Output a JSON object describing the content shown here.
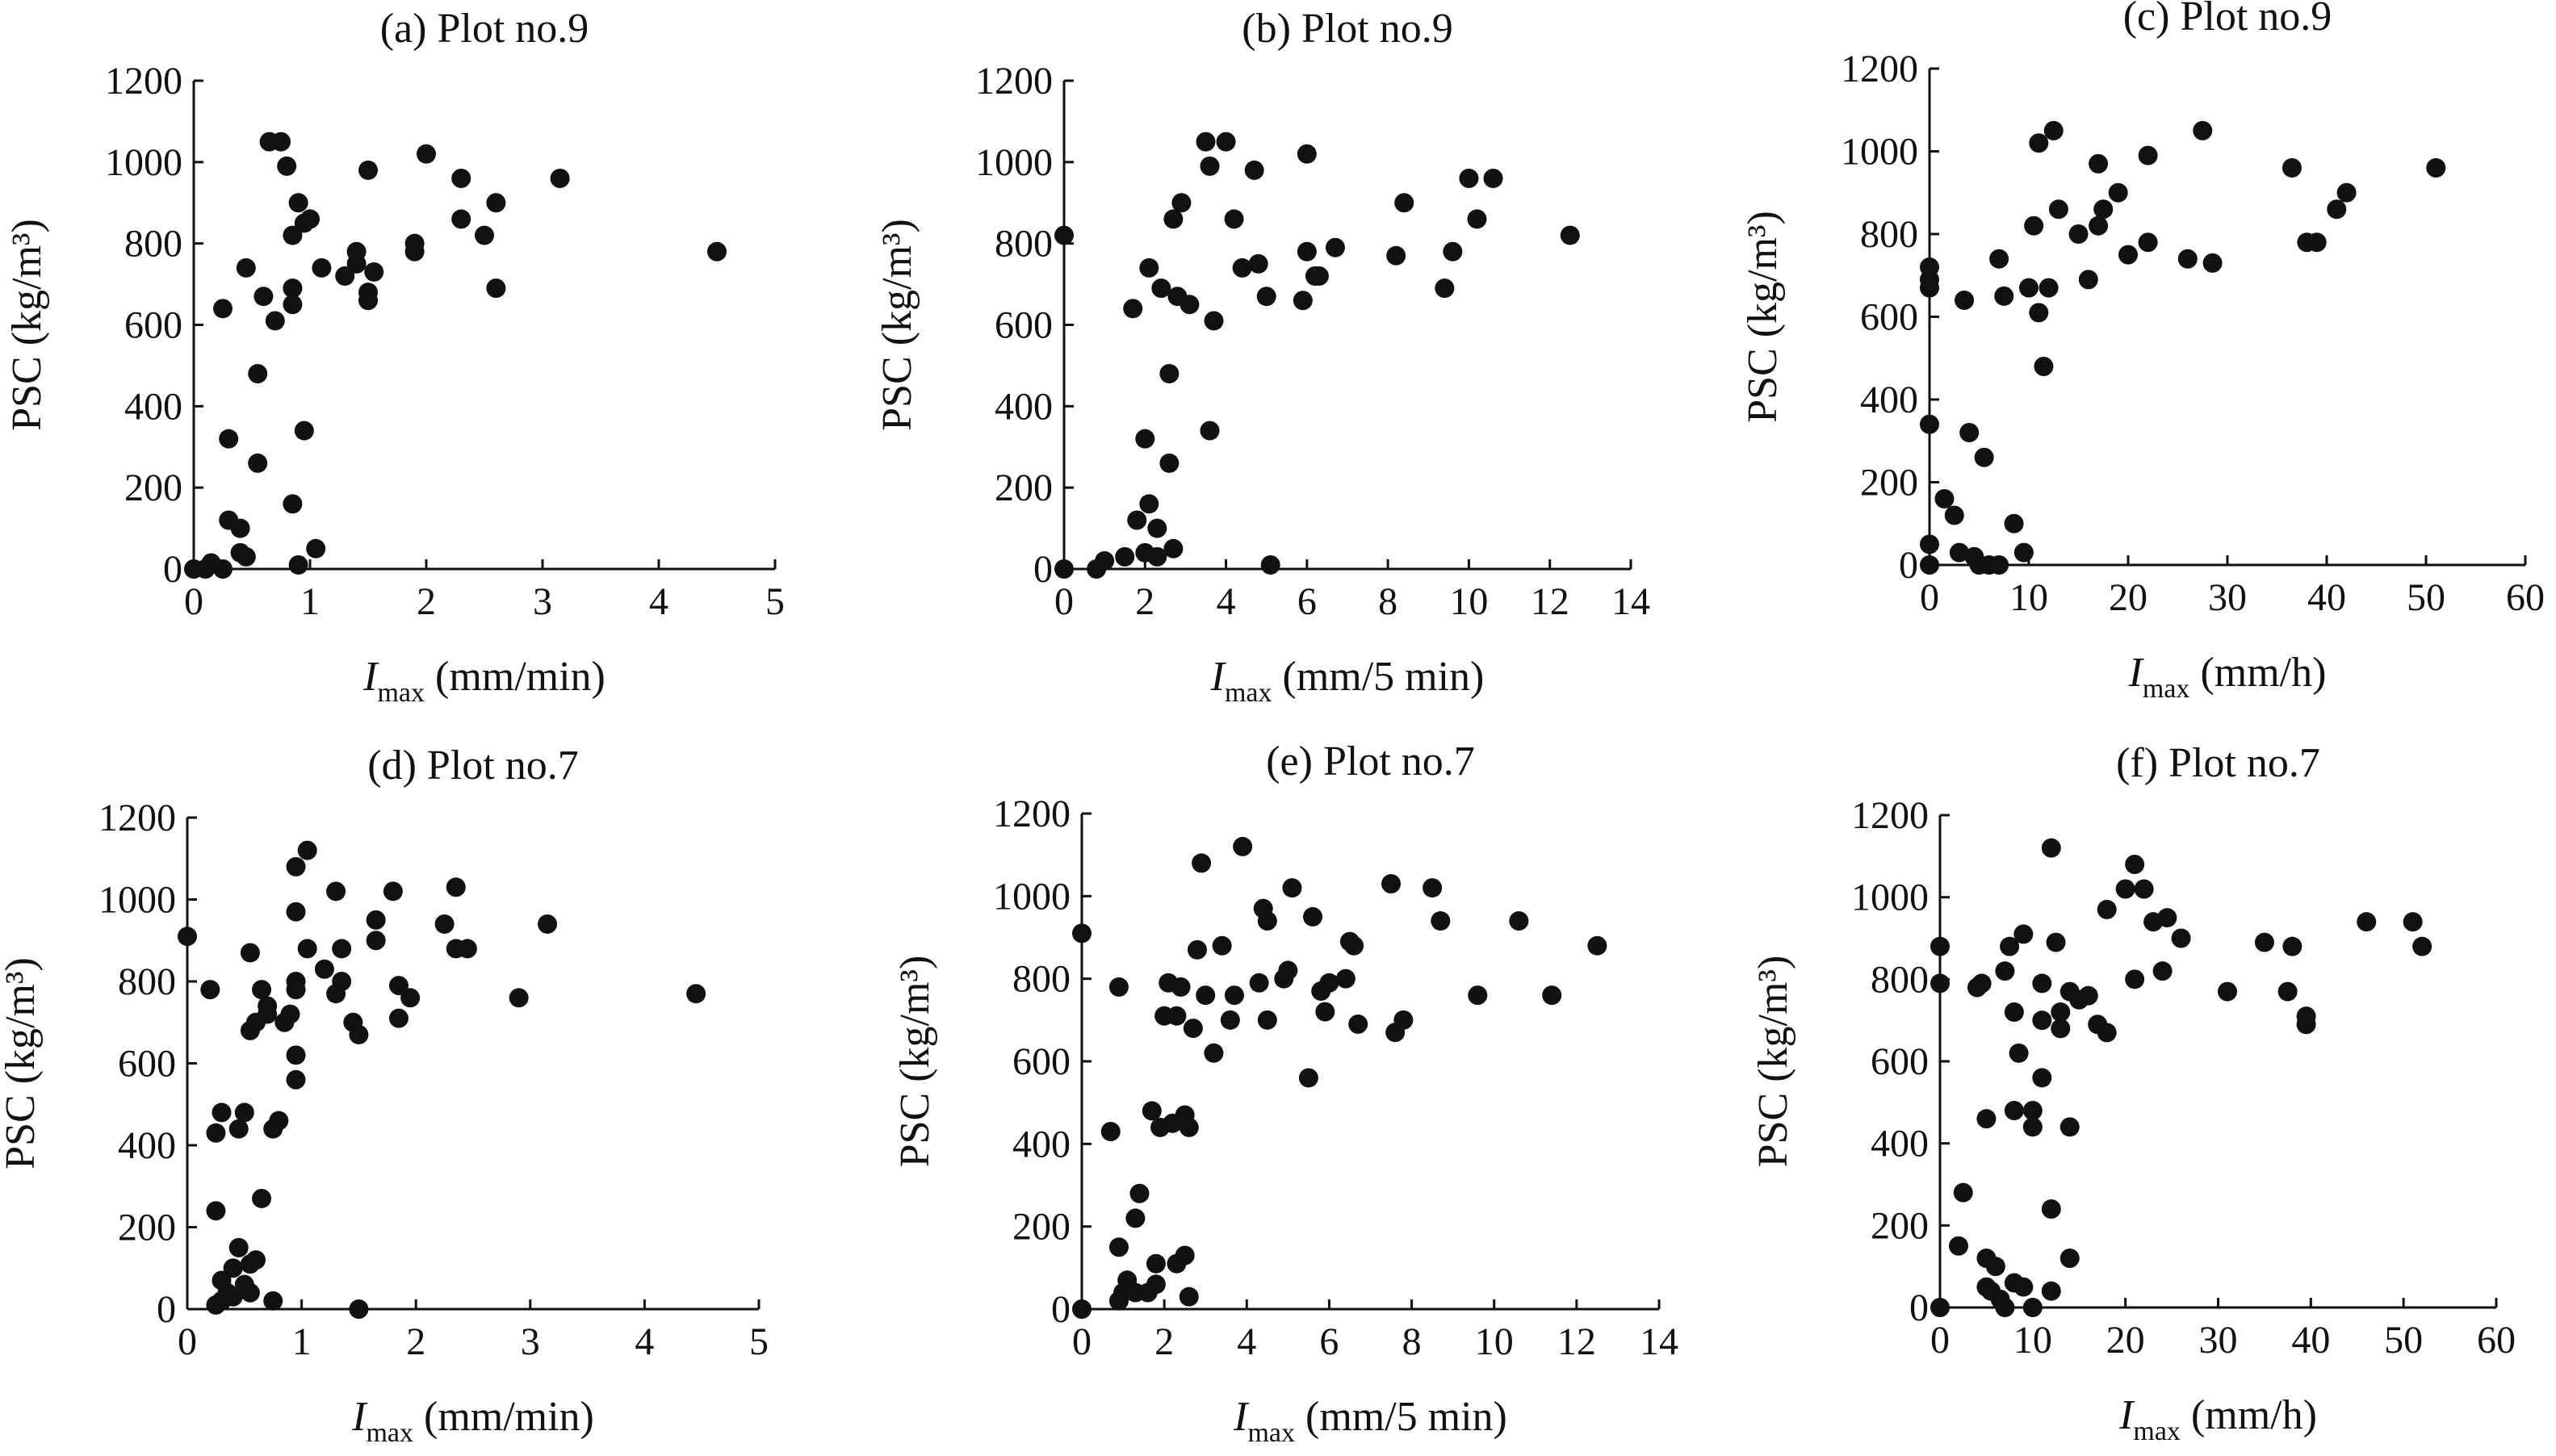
{
  "figure": {
    "background": "#ffffff",
    "marker_color": "#111111"
  },
  "chart_data": [
    {
      "type": "scatter",
      "title": "(a) Plot no.9",
      "ylabel": "PSC (kg/m³)",
      "xlabel_main": "I",
      "xlabel_sub": "max",
      "xlabel_rest": " (mm/min)",
      "xlim": [
        0,
        5
      ],
      "ylim": [
        0,
        1200
      ],
      "xticks": [
        "0",
        "1",
        "2",
        "3",
        "4",
        "5"
      ],
      "yticks": [
        "0",
        "200",
        "400",
        "600",
        "800",
        "1000",
        "1200"
      ],
      "grid": false,
      "points": [
        [
          0,
          0
        ],
        [
          0.1,
          0
        ],
        [
          0.15,
          15
        ],
        [
          0.25,
          0
        ],
        [
          0.3,
          120
        ],
        [
          0.3,
          320
        ],
        [
          0.25,
          640
        ],
        [
          0.4,
          40
        ],
        [
          0.45,
          30
        ],
        [
          0.4,
          100
        ],
        [
          0.45,
          740
        ],
        [
          0.55,
          260
        ],
        [
          0.55,
          480
        ],
        [
          0.6,
          670
        ],
        [
          0.65,
          1050
        ],
        [
          0.7,
          610
        ],
        [
          0.75,
          1050
        ],
        [
          0.8,
          990
        ],
        [
          0.85,
          650
        ],
        [
          0.85,
          690
        ],
        [
          0.85,
          820
        ],
        [
          0.85,
          160
        ],
        [
          0.9,
          10
        ],
        [
          0.9,
          900
        ],
        [
          0.95,
          850
        ],
        [
          0.95,
          340
        ],
        [
          1.0,
          860
        ],
        [
          1.05,
          50
        ],
        [
          1.1,
          740
        ],
        [
          1.3,
          720
        ],
        [
          1.4,
          750
        ],
        [
          1.4,
          780
        ],
        [
          1.5,
          660
        ],
        [
          1.5,
          680
        ],
        [
          1.5,
          980
        ],
        [
          1.55,
          730
        ],
        [
          1.9,
          780
        ],
        [
          1.9,
          800
        ],
        [
          2.0,
          1020
        ],
        [
          2.3,
          860
        ],
        [
          2.3,
          960
        ],
        [
          2.5,
          820
        ],
        [
          2.6,
          690
        ],
        [
          2.6,
          900
        ],
        [
          3.15,
          960
        ],
        [
          4.5,
          780
        ]
      ]
    },
    {
      "type": "scatter",
      "title": "(b) Plot no.9",
      "ylabel": "PSC (kg/m³)",
      "xlabel_main": "I",
      "xlabel_sub": "max",
      "xlabel_rest": " (mm/5 min)",
      "xlim": [
        0,
        14
      ],
      "ylim": [
        0,
        1200
      ],
      "xticks": [
        "0",
        "2",
        "4",
        "6",
        "8",
        "10",
        "12",
        "14"
      ],
      "yticks": [
        "0",
        "200",
        "400",
        "600",
        "800",
        "1000",
        "1200"
      ],
      "grid": false,
      "points": [
        [
          0,
          0
        ],
        [
          0,
          820
        ],
        [
          0.8,
          0
        ],
        [
          1.0,
          20
        ],
        [
          1.5,
          30
        ],
        [
          1.7,
          640
        ],
        [
          1.8,
          120
        ],
        [
          2.0,
          40
        ],
        [
          2.0,
          320
        ],
        [
          2.1,
          740
        ],
        [
          2.1,
          160
        ],
        [
          2.3,
          30
        ],
        [
          2.3,
          100
        ],
        [
          2.4,
          690
        ],
        [
          2.6,
          480
        ],
        [
          2.6,
          260
        ],
        [
          2.7,
          50
        ],
        [
          2.7,
          860
        ],
        [
          2.8,
          670
        ],
        [
          2.9,
          900
        ],
        [
          3.1,
          650
        ],
        [
          3.5,
          1050
        ],
        [
          3.6,
          990
        ],
        [
          3.7,
          610
        ],
        [
          3.6,
          340
        ],
        [
          4.0,
          1050
        ],
        [
          4.2,
          860
        ],
        [
          4.4,
          740
        ],
        [
          4.7,
          980
        ],
        [
          4.8,
          750
        ],
        [
          5.0,
          670
        ],
        [
          5.1,
          10
        ],
        [
          5.9,
          660
        ],
        [
          6.0,
          780
        ],
        [
          6.0,
          1020
        ],
        [
          6.2,
          720
        ],
        [
          6.3,
          720
        ],
        [
          6.7,
          790
        ],
        [
          8.2,
          770
        ],
        [
          8.4,
          900
        ],
        [
          9.4,
          690
        ],
        [
          9.6,
          780
        ],
        [
          10.0,
          960
        ],
        [
          10.2,
          860
        ],
        [
          10.6,
          960
        ],
        [
          12.5,
          820
        ]
      ]
    },
    {
      "type": "scatter",
      "title": "(c) Plot no.9",
      "ylabel": "PSC (kg/m³)",
      "xlabel_main": "I",
      "xlabel_sub": "max",
      "xlabel_rest": " (mm/h)",
      "xlim": [
        0,
        60
      ],
      "ylim": [
        0,
        1200
      ],
      "xticks": [
        "0",
        "10",
        "20",
        "30",
        "40",
        "50",
        "60"
      ],
      "yticks": [
        "0",
        "200",
        "400",
        "600",
        "800",
        "1000",
        "1200"
      ],
      "grid": false,
      "points": [
        [
          0,
          0
        ],
        [
          0,
          50
        ],
        [
          0,
          340
        ],
        [
          0,
          670
        ],
        [
          0,
          690
        ],
        [
          0,
          720
        ],
        [
          1.5,
          160
        ],
        [
          2.5,
          120
        ],
        [
          3,
          30
        ],
        [
          3.5,
          640
        ],
        [
          4,
          320
        ],
        [
          4.5,
          20
        ],
        [
          5,
          0
        ],
        [
          5.5,
          260
        ],
        [
          6,
          0
        ],
        [
          7,
          0
        ],
        [
          7,
          740
        ],
        [
          7.5,
          650
        ],
        [
          8.5,
          100
        ],
        [
          9.5,
          30
        ],
        [
          10,
          670
        ],
        [
          10.5,
          820
        ],
        [
          11,
          610
        ],
        [
          11,
          1020
        ],
        [
          11.5,
          480
        ],
        [
          12,
          670
        ],
        [
          12.5,
          1050
        ],
        [
          13,
          860
        ],
        [
          15,
          800
        ],
        [
          16,
          690
        ],
        [
          17,
          970
        ],
        [
          17,
          820
        ],
        [
          17.5,
          860
        ],
        [
          19,
          900
        ],
        [
          20,
          750
        ],
        [
          22,
          990
        ],
        [
          22,
          780
        ],
        [
          26,
          740
        ],
        [
          27.5,
          1050
        ],
        [
          28.5,
          730
        ],
        [
          36.5,
          960
        ],
        [
          38,
          780
        ],
        [
          39,
          780
        ],
        [
          41,
          860
        ],
        [
          42,
          900
        ],
        [
          51,
          960
        ]
      ]
    },
    {
      "type": "scatter",
      "title": "(d) Plot no.7",
      "ylabel": "PSC (kg/m³)",
      "xlabel_main": "I",
      "xlabel_sub": "max",
      "xlabel_rest": " (mm/min)",
      "xlim": [
        0,
        5
      ],
      "ylim": [
        0,
        1200
      ],
      "xticks": [
        "0",
        "1",
        "2",
        "3",
        "4",
        "5"
      ],
      "yticks": [
        "0",
        "200",
        "400",
        "600",
        "800",
        "1000",
        "1200"
      ],
      "grid": false,
      "points": [
        [
          0,
          910
        ],
        [
          0.2,
          780
        ],
        [
          0.25,
          430
        ],
        [
          0.25,
          240
        ],
        [
          0.25,
          10
        ],
        [
          0.3,
          480
        ],
        [
          0.3,
          20
        ],
        [
          0.3,
          70
        ],
        [
          0.35,
          40
        ],
        [
          0.4,
          30
        ],
        [
          0.4,
          100
        ],
        [
          0.45,
          150
        ],
        [
          0.45,
          440
        ],
        [
          0.5,
          60
        ],
        [
          0.5,
          480
        ],
        [
          0.55,
          110
        ],
        [
          0.55,
          870
        ],
        [
          0.55,
          680
        ],
        [
          0.55,
          40
        ],
        [
          0.6,
          700
        ],
        [
          0.6,
          120
        ],
        [
          0.65,
          780
        ],
        [
          0.65,
          270
        ],
        [
          0.7,
          740
        ],
        [
          0.7,
          720
        ],
        [
          0.75,
          440
        ],
        [
          0.75,
          20
        ],
        [
          0.8,
          460
        ],
        [
          0.85,
          700
        ],
        [
          0.9,
          720
        ],
        [
          0.95,
          560
        ],
        [
          0.95,
          620
        ],
        [
          0.95,
          780
        ],
        [
          0.95,
          800
        ],
        [
          0.95,
          970
        ],
        [
          0.95,
          1080
        ],
        [
          1.05,
          1120
        ],
        [
          1.05,
          880
        ],
        [
          1.2,
          830
        ],
        [
          1.3,
          770
        ],
        [
          1.3,
          1020
        ],
        [
          1.35,
          800
        ],
        [
          1.35,
          880
        ],
        [
          1.45,
          700
        ],
        [
          1.5,
          670
        ],
        [
          1.5,
          0
        ],
        [
          1.65,
          900
        ],
        [
          1.65,
          950
        ],
        [
          1.8,
          1020
        ],
        [
          1.85,
          790
        ],
        [
          1.85,
          710
        ],
        [
          1.95,
          760
        ],
        [
          2.25,
          940
        ],
        [
          2.35,
          1030
        ],
        [
          2.35,
          880
        ],
        [
          2.45,
          880
        ],
        [
          2.9,
          760
        ],
        [
          3.15,
          940
        ],
        [
          4.45,
          770
        ]
      ]
    },
    {
      "type": "scatter",
      "title": "(e) Plot no.7",
      "ylabel": "PSC (kg/m³)",
      "xlabel_main": "I",
      "xlabel_sub": "max",
      "xlabel_rest": " (mm/5 min)",
      "xlim": [
        0,
        14
      ],
      "ylim": [
        0,
        1200
      ],
      "xticks": [
        "0",
        "2",
        "4",
        "6",
        "8",
        "10",
        "12",
        "14"
      ],
      "yticks": [
        "0",
        "200",
        "400",
        "600",
        "800",
        "1000",
        "1200"
      ],
      "grid": false,
      "points": [
        [
          0,
          910
        ],
        [
          0,
          0
        ],
        [
          0.7,
          430
        ],
        [
          0.9,
          20
        ],
        [
          0.9,
          150
        ],
        [
          0.9,
          780
        ],
        [
          1.0,
          40
        ],
        [
          1.1,
          70
        ],
        [
          1.3,
          220
        ],
        [
          1.3,
          40
        ],
        [
          1.4,
          280
        ],
        [
          1.6,
          40
        ],
        [
          1.7,
          480
        ],
        [
          1.8,
          110
        ],
        [
          1.8,
          60
        ],
        [
          1.9,
          440
        ],
        [
          2.0,
          710
        ],
        [
          2.1,
          790
        ],
        [
          2.2,
          450
        ],
        [
          2.3,
          110
        ],
        [
          2.3,
          710
        ],
        [
          2.4,
          780
        ],
        [
          2.5,
          470
        ],
        [
          2.5,
          130
        ],
        [
          2.6,
          440
        ],
        [
          2.6,
          30
        ],
        [
          2.7,
          680
        ],
        [
          2.8,
          870
        ],
        [
          2.9,
          1080
        ],
        [
          3.0,
          760
        ],
        [
          3.2,
          620
        ],
        [
          3.4,
          880
        ],
        [
          3.6,
          700
        ],
        [
          3.7,
          760
        ],
        [
          3.9,
          1120
        ],
        [
          4.3,
          790
        ],
        [
          4.4,
          970
        ],
        [
          4.5,
          700
        ],
        [
          4.5,
          940
        ],
        [
          4.9,
          800
        ],
        [
          5.0,
          820
        ],
        [
          5.1,
          1020
        ],
        [
          5.5,
          560
        ],
        [
          5.6,
          950
        ],
        [
          5.8,
          770
        ],
        [
          5.9,
          720
        ],
        [
          6.0,
          790
        ],
        [
          6.4,
          800
        ],
        [
          6.5,
          890
        ],
        [
          6.6,
          880
        ],
        [
          6.7,
          690
        ],
        [
          7.5,
          1030
        ],
        [
          7.6,
          670
        ],
        [
          7.8,
          700
        ],
        [
          8.5,
          1020
        ],
        [
          8.7,
          940
        ],
        [
          9.6,
          760
        ],
        [
          10.6,
          940
        ],
        [
          11.4,
          760
        ],
        [
          12.5,
          880
        ]
      ]
    },
    {
      "type": "scatter",
      "title": "(f) Plot no.7",
      "ylabel": "PSC (kg/m³)",
      "xlabel_main": "I",
      "xlabel_sub": "max",
      "xlabel_rest": " (mm/h)",
      "xlim": [
        0,
        60
      ],
      "ylim": [
        0,
        1200
      ],
      "xticks": [
        "0",
        "10",
        "20",
        "30",
        "40",
        "50",
        "60"
      ],
      "yticks": [
        "0",
        "200",
        "400",
        "600",
        "800",
        "1000",
        "1200"
      ],
      "grid": false,
      "points": [
        [
          0,
          0
        ],
        [
          0,
          790
        ],
        [
          0,
          880
        ],
        [
          2,
          150
        ],
        [
          2.5,
          280
        ],
        [
          4,
          780
        ],
        [
          4.5,
          790
        ],
        [
          5,
          460
        ],
        [
          5,
          120
        ],
        [
          5,
          50
        ],
        [
          5.5,
          40
        ],
        [
          6,
          100
        ],
        [
          6.5,
          20
        ],
        [
          7,
          0
        ],
        [
          7,
          820
        ],
        [
          7.5,
          880
        ],
        [
          8,
          720
        ],
        [
          8,
          480
        ],
        [
          8,
          60
        ],
        [
          8.5,
          620
        ],
        [
          9,
          910
        ],
        [
          9,
          50
        ],
        [
          10,
          440
        ],
        [
          10,
          480
        ],
        [
          10,
          0
        ],
        [
          11,
          560
        ],
        [
          11,
          700
        ],
        [
          11,
          790
        ],
        [
          12,
          240
        ],
        [
          12,
          40
        ],
        [
          12,
          1120
        ],
        [
          12.5,
          890
        ],
        [
          13,
          720
        ],
        [
          13,
          680
        ],
        [
          14,
          440
        ],
        [
          14,
          770
        ],
        [
          14,
          120
        ],
        [
          15,
          750
        ],
        [
          16,
          760
        ],
        [
          17,
          690
        ],
        [
          18,
          670
        ],
        [
          18,
          970
        ],
        [
          20,
          1020
        ],
        [
          21,
          800
        ],
        [
          21,
          1080
        ],
        [
          22,
          1020
        ],
        [
          23,
          940
        ],
        [
          24,
          820
        ],
        [
          24.5,
          950
        ],
        [
          26,
          900
        ],
        [
          31,
          770
        ],
        [
          35,
          890
        ],
        [
          37.5,
          770
        ],
        [
          38,
          880
        ],
        [
          39.5,
          710
        ],
        [
          39.5,
          690
        ],
        [
          46,
          940
        ],
        [
          51,
          940
        ],
        [
          52,
          880
        ]
      ]
    }
  ]
}
